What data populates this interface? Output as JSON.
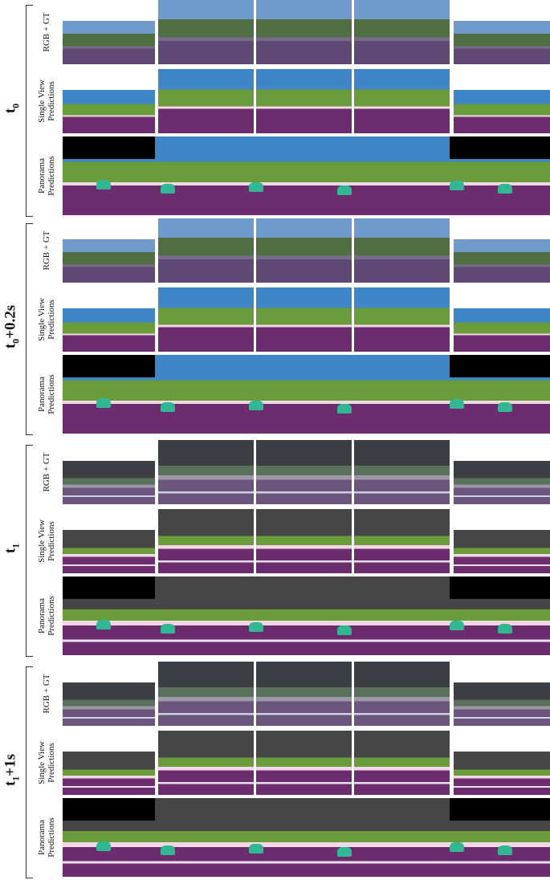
{
  "groups": [
    {
      "time": {
        "base": "t",
        "sub": "0",
        "suffix": ""
      },
      "rows": [
        {
          "lines": [
            "RGB + GT"
          ]
        },
        {
          "lines": [
            "Single View",
            "Predictions"
          ]
        },
        {
          "lines": [
            "Panorama",
            "Predictions"
          ]
        }
      ]
    },
    {
      "time": {
        "base": "t",
        "sub": "0",
        "suffix": "+0.2s"
      },
      "rows": [
        {
          "lines": [
            "RGB + GT"
          ]
        },
        {
          "lines": [
            "Single View",
            "Predictions"
          ]
        },
        {
          "lines": [
            "Panorama",
            "Predictions"
          ]
        }
      ]
    },
    {
      "time": {
        "base": "t",
        "sub": "1",
        "suffix": ""
      },
      "rows": [
        {
          "lines": [
            "RGB + GT"
          ]
        },
        {
          "lines": [
            "Single View",
            "Predictions"
          ]
        },
        {
          "lines": [
            "Panorama",
            "Predictions"
          ]
        }
      ]
    },
    {
      "time": {
        "base": "t",
        "sub": "1",
        "suffix": "+1s"
      },
      "rows": [
        {
          "lines": [
            "RGB + GT"
          ]
        },
        {
          "lines": [
            "Single View",
            "Predictions"
          ]
        },
        {
          "lines": [
            "Panorama",
            "Predictions"
          ]
        }
      ]
    }
  ]
}
